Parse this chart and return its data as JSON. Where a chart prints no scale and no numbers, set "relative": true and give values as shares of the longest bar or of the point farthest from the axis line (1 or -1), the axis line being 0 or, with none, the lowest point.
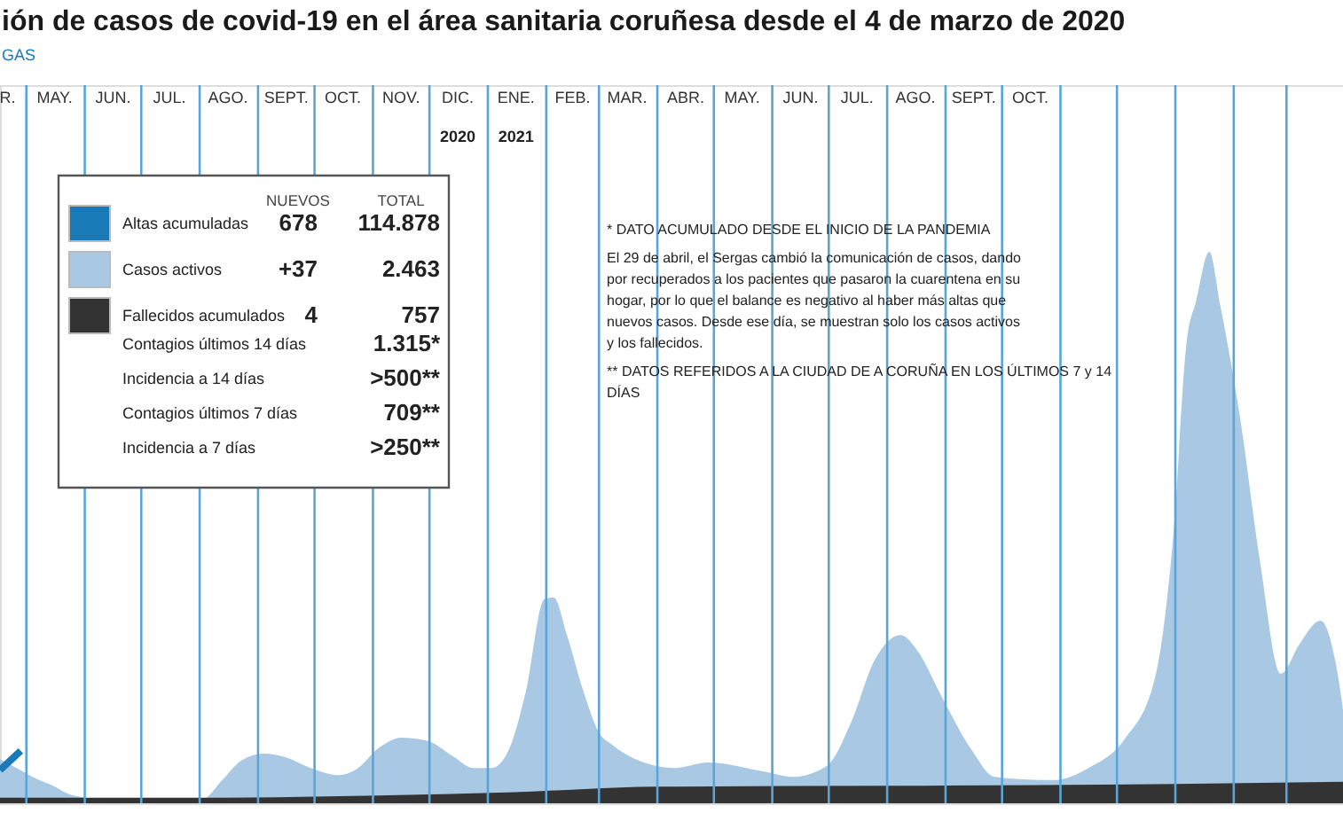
{
  "chart_data": {
    "type": "area",
    "title": "ión de casos de covid-19 en el área sanitaria coruñesa desde el 4 de marzo de 2020",
    "subtitle": "GAS",
    "relative": true,
    "grid": "x",
    "legend": "top left",
    "xlim": [
      "2020-04-17",
      "2022-03-31"
    ],
    "x2lim": [
      "2020-04-17",
      "2022-03-31"
    ],
    "xticks": [
      {
        "value": "2020-04-21",
        "label": "R."
      },
      {
        "value": "2020-05-16",
        "label": "MAY."
      },
      {
        "value": "2020-06-16",
        "label": "JUN."
      },
      {
        "value": "2020-07-16",
        "label": "JUL."
      },
      {
        "value": "2020-08-16",
        "label": "AGO."
      },
      {
        "value": "2020-09-16",
        "label": "SEPT."
      },
      {
        "value": "2020-10-16",
        "label": "OCT."
      },
      {
        "value": "2020-11-16",
        "label": "NOV."
      },
      {
        "value": "2020-12-16",
        "label": "DIC."
      },
      {
        "value": "2021-01-16",
        "label": "ENE."
      },
      {
        "value": "2021-02-15",
        "label": "FEB."
      },
      {
        "value": "2021-03-16",
        "label": "MAR."
      },
      {
        "value": "2021-04-16",
        "label": "ABR."
      },
      {
        "value": "2021-05-16",
        "label": "MAY."
      },
      {
        "value": "2021-06-16",
        "label": "JUN."
      },
      {
        "value": "2021-07-16",
        "label": "JUL."
      },
      {
        "value": "2021-08-16",
        "label": "AGO."
      },
      {
        "value": "2021-09-16",
        "label": "SEPT."
      },
      {
        "value": "2021-10-16",
        "label": "OCT."
      },
      {
        "value": "2020-05-01",
        "label": null
      },
      {
        "value": "2020-06-01",
        "label": null
      },
      {
        "value": "2020-07-01",
        "label": null
      },
      {
        "value": "2020-08-01",
        "label": null
      },
      {
        "value": "2020-09-01",
        "label": null
      },
      {
        "value": "2020-10-01",
        "label": null
      },
      {
        "value": "2020-11-01",
        "label": null
      },
      {
        "value": "2020-12-01",
        "label": null
      },
      {
        "value": "2021-01-01",
        "label": null
      },
      {
        "value": "2021-02-01",
        "label": null
      },
      {
        "value": "2021-03-01",
        "label": null
      },
      {
        "value": "2021-04-01",
        "label": null
      },
      {
        "value": "2021-05-01",
        "label": null
      },
      {
        "value": "2021-06-01",
        "label": null
      },
      {
        "value": "2021-07-01",
        "label": null
      },
      {
        "value": "2021-08-01",
        "label": null
      },
      {
        "value": "2021-09-01",
        "label": null
      },
      {
        "value": "2021-10-01",
        "label": null
      },
      {
        "value": "2021-11-01",
        "label": null
      },
      {
        "value": "2021-12-01",
        "label": null
      },
      {
        "value": "2022-01-01",
        "label": null
      },
      {
        "value": "2022-02-01",
        "label": null
      },
      {
        "value": "2022-03-01",
        "label": null
      }
    ],
    "x2ticks": [
      {
        "value": "2020-12-16",
        "label": "2020"
      },
      {
        "value": "2021-01-16",
        "label": "2021"
      }
    ],
    "series": [
      {
        "name": "Altas acumuladas",
        "type": "line",
        "color": "#1a7ab8",
        "x": [
          "2020-04-17",
          "2020-04-28"
        ],
        "values": [
          0.06,
          0.095
        ]
      },
      {
        "name": "Casos activos",
        "color": "#a9c8e3",
        "x": [
          "2020-04-17",
          "2020-04-28",
          "2020-05-06",
          "2020-05-15",
          "2020-05-24",
          "2020-06-13",
          "2020-07-01",
          "2020-08-02",
          "2020-08-13",
          "2020-08-23",
          "2020-09-04",
          "2020-09-15",
          "2020-09-29",
          "2020-10-14",
          "2020-10-23",
          "2020-11-04",
          "2020-11-16",
          "2020-11-30",
          "2020-12-14",
          "2020-12-24",
          "2021-01-03",
          "2021-01-12",
          "2021-01-21",
          "2021-01-31",
          "2021-02-05",
          "2021-02-12",
          "2021-02-21",
          "2021-03-01",
          "2021-03-08",
          "2021-03-31",
          "2021-04-10",
          "2021-04-28",
          "2021-05-27",
          "2021-06-12",
          "2021-06-30",
          "2021-07-13",
          "2021-07-25",
          "2021-08-08",
          "2021-08-17",
          "2021-08-30",
          "2021-09-15",
          "2021-09-27",
          "2021-10-28",
          "2021-11-16",
          "2021-12-05",
          "2021-12-21",
          "2021-12-31",
          "2022-01-07",
          "2022-01-12",
          "2022-01-19",
          "2022-01-25",
          "2022-02-04",
          "2022-02-15",
          "2022-02-26",
          "2022-03-08",
          "2022-03-19",
          "2022-03-27",
          "2022-03-31"
        ],
        "values": [
          0.08,
          0.06,
          0.045,
          0.032,
          0.016,
          0.006,
          0.003,
          0.006,
          0.042,
          0.077,
          0.09,
          0.084,
          0.064,
          0.051,
          0.061,
          0.1,
          0.119,
          0.113,
          0.084,
          0.064,
          0.064,
          0.096,
          0.2,
          0.37,
          0.373,
          0.305,
          0.2,
          0.128,
          0.106,
          0.068,
          0.064,
          0.074,
          0.058,
          0.048,
          0.068,
          0.148,
          0.257,
          0.305,
          0.277,
          0.193,
          0.096,
          0.048,
          0.042,
          0.064,
          0.116,
          0.225,
          0.49,
          0.836,
          0.91,
          1,
          0.9,
          0.707,
          0.437,
          0.235,
          0.289,
          0.331,
          0.257,
          0.17
        ]
      },
      {
        "name": "Fallecidos acumulados",
        "color": "#333333",
        "x": [
          "2020-04-17",
          "2020-08-01",
          "2020-12-01",
          "2021-01-15",
          "2021-03-31",
          "2021-09-01",
          "2022-01-01",
          "2022-03-31"
        ],
        "values": [
          0.01,
          0.01,
          0.016,
          0.02,
          0.03,
          0.032,
          0.035,
          0.039
        ]
      }
    ],
    "annotations": [
      "NUEVOS",
      "TOTAL",
      "678",
      "114.878",
      "+37",
      "2.463",
      "4",
      "757",
      "Contagios últimos 14 días",
      "1.315*",
      "Incidencia a 14 días",
      ">500**",
      "Contagios últimos 7 días",
      "709**",
      "Incidencia a 7 días",
      ">250**",
      "* DATO ACUMULADO DESDE EL INICIO DE LA PANDEMIA",
      "El 29 de abril, el Sergas cambió la comunicación de casos, dando por recuperados a los pacientes que pasaron la cuarentena en su hogar, por lo que el balance es negativo al haber más altas que nuevos casos. Desde ese día, se muestran solo los casos activos y los fallecidos.",
      "** DATOS REFERIDOS A LA CIUDAD DE A CORUÑA EN LOS ÚLTIMOS 7 y 14 DÍAS"
    ]
  }
}
